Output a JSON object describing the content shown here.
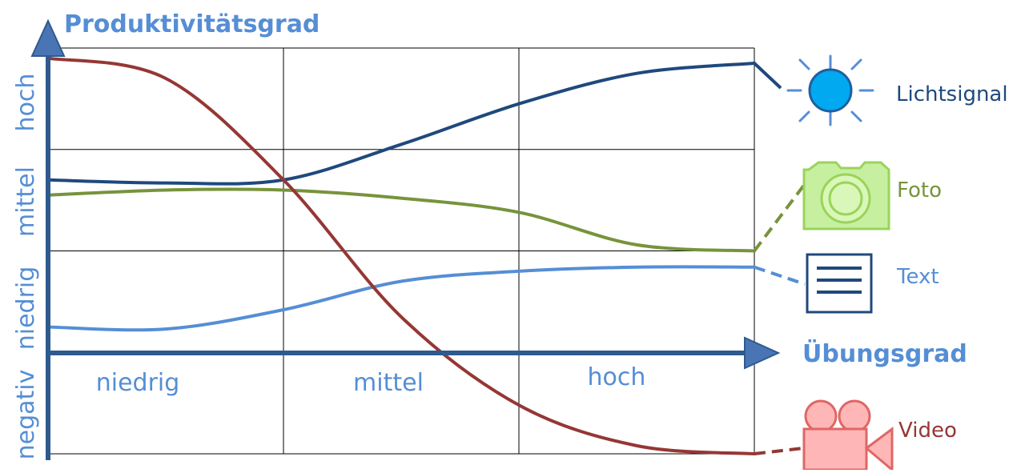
{
  "chart_data": {
    "type": "line",
    "title": "Produktivitätsgrad",
    "xlabel": "Übungsgrad",
    "ylabel": "Produktivitätsgrad",
    "x_tick_labels": [
      "niedrig",
      "mittel",
      "hoch"
    ],
    "y_tick_labels": [
      "negativ",
      "niedrig",
      "mittel",
      "hoch"
    ],
    "x_range": [
      0,
      3
    ],
    "y_range": [
      -1,
      3
    ],
    "grid": true,
    "legend": "right",
    "series": [
      {
        "name": "Lichtsignal",
        "color": "#1f497d",
        "icon": "sun-icon",
        "x": [
          0,
          0.5,
          1,
          1.5,
          2,
          2.5,
          3
        ],
        "y": [
          1.7,
          1.67,
          1.7,
          2.05,
          2.45,
          2.75,
          2.85
        ]
      },
      {
        "name": "Foto",
        "color": "#77933c",
        "icon": "camera-icon",
        "x": [
          0,
          0.5,
          1,
          1.5,
          2,
          2.5,
          3
        ],
        "y": [
          1.55,
          1.6,
          1.6,
          1.52,
          1.38,
          1.06,
          1.0
        ]
      },
      {
        "name": "Text",
        "color": "#558ed5",
        "icon": "document-icon",
        "x": [
          0,
          0.5,
          1,
          1.5,
          2,
          2.5,
          3
        ],
        "y": [
          0.25,
          0.23,
          0.42,
          0.7,
          0.8,
          0.84,
          0.84
        ]
      },
      {
        "name": "Video",
        "color": "#953735",
        "icon": "video-camera-icon",
        "x": [
          0,
          0.5,
          1,
          1.5,
          2,
          2.5,
          3
        ],
        "y": [
          2.9,
          2.7,
          1.7,
          0.35,
          -0.52,
          -0.92,
          -1.0
        ]
      }
    ]
  }
}
